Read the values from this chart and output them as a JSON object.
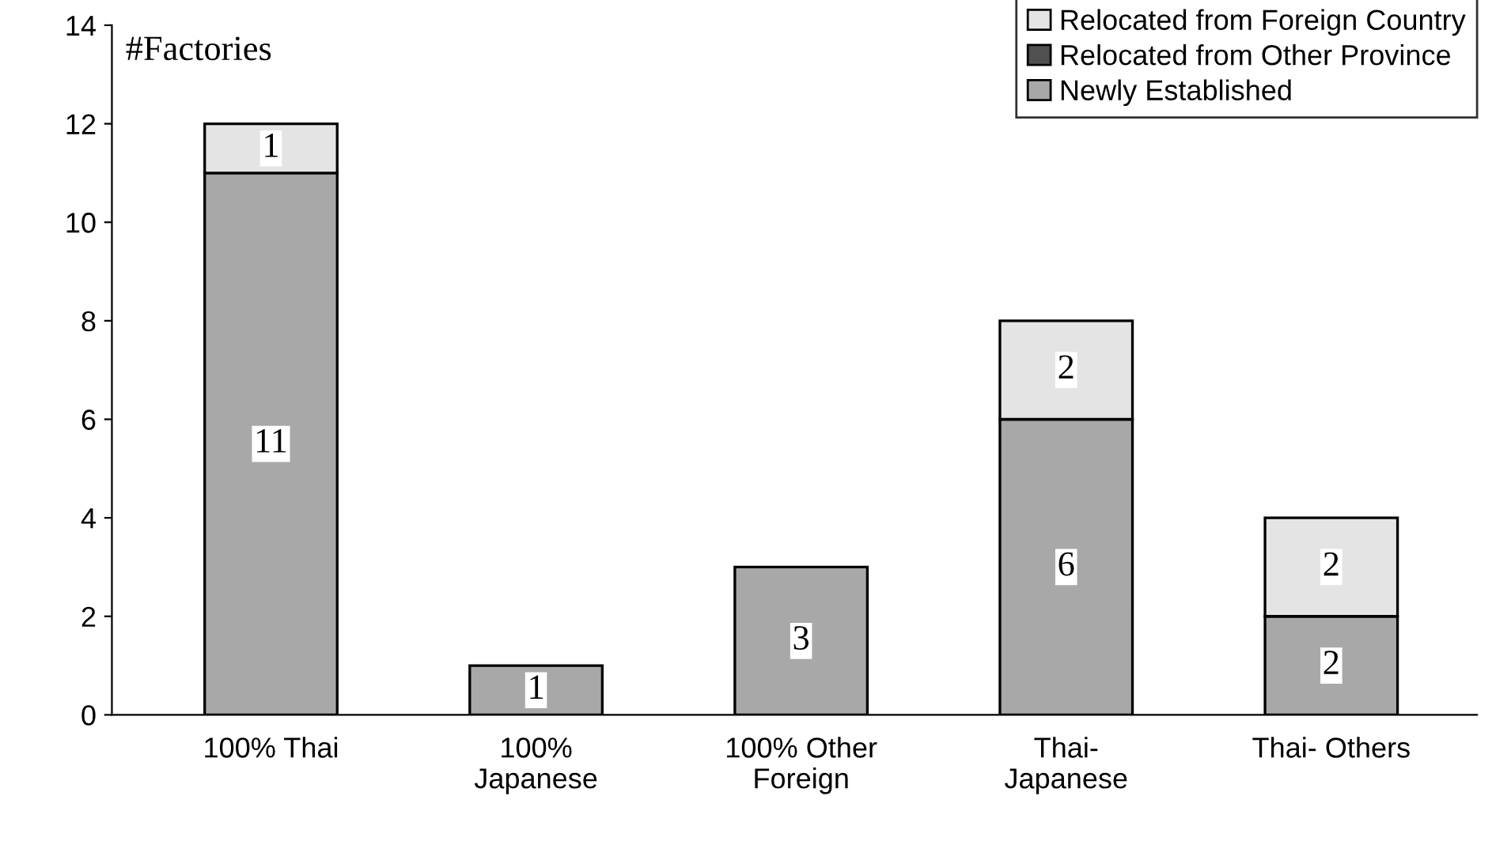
{
  "chart_data": {
    "type": "bar",
    "stacked": true,
    "ylabel": "#Factories",
    "categories": [
      "100% Thai",
      "100%\nJapanese",
      "100% Other\nForeign",
      "Thai-\nJapanese",
      "Thai- Others"
    ],
    "series": [
      {
        "name": "Newly Established",
        "color": "#a8a8a8",
        "values": [
          11,
          1,
          3,
          6,
          2
        ],
        "value_labels": [
          "11",
          "1",
          "3",
          "6",
          "2"
        ]
      },
      {
        "name": "Relocated from Other Province",
        "color": "#505050",
        "values": [
          0,
          0,
          0,
          0,
          0
        ]
      },
      {
        "name": "Relocated from Foreign Country",
        "color": "#e4e4e4",
        "values": [
          1,
          0,
          0,
          2,
          2
        ],
        "value_labels": [
          "1",
          null,
          null,
          "2",
          "2"
        ]
      }
    ],
    "ylim": [
      0,
      14
    ],
    "yticks": [
      0,
      2,
      4,
      6,
      8,
      10,
      12,
      14
    ],
    "legend": "top right",
    "grid": false
  }
}
